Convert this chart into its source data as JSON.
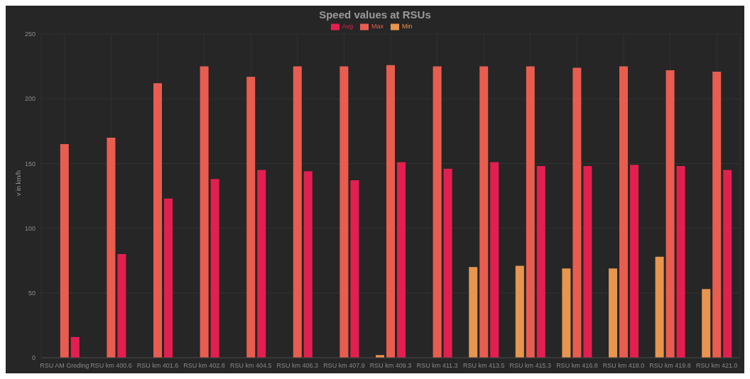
{
  "chart_data": {
    "type": "bar",
    "title": "Speed values at RSUs",
    "ylabel": "v in km/h",
    "categories": [
      "RSU AM Greding",
      "RSU km 400.6",
      "RSU km 401.6",
      "RSU km 402.8",
      "RSU km 404.5",
      "RSU km 406.3",
      "RSU km 407.9",
      "RSU km 409.3",
      "RSU km 411.3",
      "RSU km 413.5",
      "RSU km 415.3",
      "RSU km 416.8",
      "RSU km 418.0",
      "RSU km 419.8",
      "RSU km 421.0"
    ],
    "series": [
      {
        "name": "Min",
        "color": "#e8954f",
        "values": [
          0,
          0,
          0,
          0,
          0,
          0,
          0,
          2,
          0,
          70,
          71,
          69,
          69,
          78,
          53
        ]
      },
      {
        "name": "Max",
        "color": "#e85d50",
        "values": [
          165,
          170,
          212,
          225,
          217,
          225,
          225,
          226,
          225,
          225,
          225,
          224,
          225,
          222,
          221
        ]
      },
      {
        "name": "Avg",
        "color": "#e31f4f",
        "values": [
          16,
          80,
          123,
          138,
          145,
          144,
          137,
          151,
          146,
          151,
          148,
          148,
          149,
          148,
          145
        ]
      }
    ],
    "ylim": [
      0,
      250
    ],
    "yticks": [
      0,
      50,
      100,
      150,
      200,
      250
    ],
    "grid": true,
    "legend": "top"
  }
}
